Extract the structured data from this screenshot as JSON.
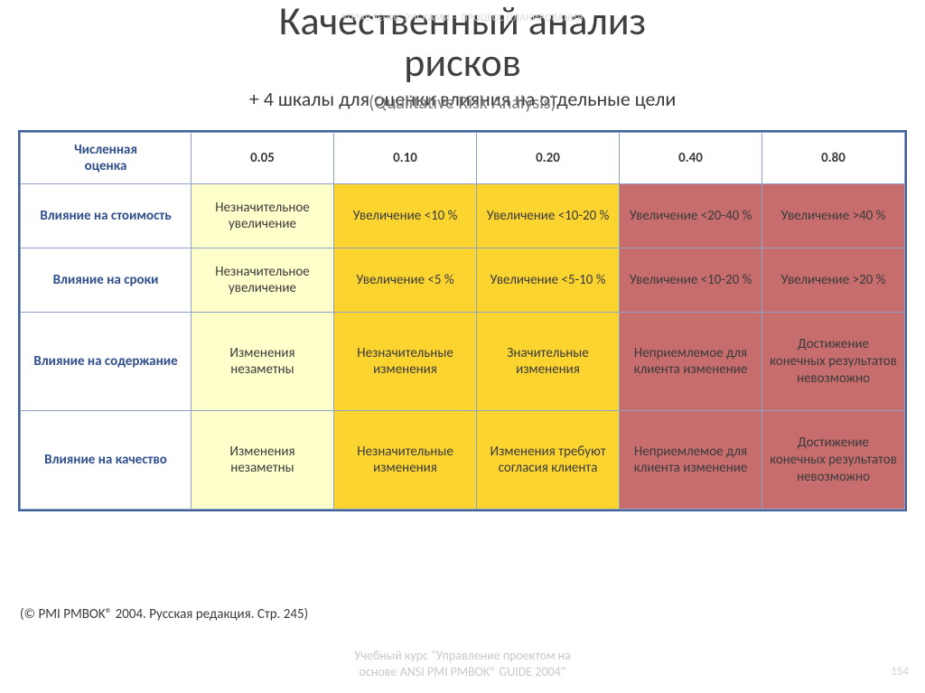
{
  "faintTop": "УПРАВЛЕНИЕ РИСКАМИ – ПРОЦЕСС ПЛАНИРОВАНИЯ",
  "titleLine1": "Качественный анализ",
  "titleLine2": "рисков",
  "subRu": "+ 4 шкалы для оценки влияния на отдельные цели",
  "subEn": "(Qualitative Risk Analysis)",
  "footnote": "(© PMI PMBOK® 2004. Русская редакция. Стр. 245)",
  "courseLine1": "Учебный курс \"Управление проектом на",
  "courseLine2": "основе ANSI PMI PMBOK® GUIDE 2004\"",
  "pageNum": "154",
  "colors": {
    "low": "#ffffcc",
    "mid": "#fcd430",
    "high": "#c76d6d",
    "border": "#3f5f9a",
    "headerText": "#2f4e8d"
  },
  "table": {
    "cornerLine1": "Численная",
    "cornerLine2": "оценка",
    "columns": [
      "0.05",
      "0.10",
      "0.20",
      "0.40",
      "0.80"
    ],
    "colColors": [
      "low",
      "mid",
      "mid",
      "high",
      "high"
    ],
    "rows": [
      {
        "head": "Влияние на стоимость",
        "tall": false,
        "cells": [
          "Незначительное увеличение",
          "Увеличение <10 %",
          "Увеличение <10-20 %",
          "Увеличение <20-40 %",
          "Увеличение >40 %"
        ]
      },
      {
        "head": "Влияние на сроки",
        "tall": false,
        "cells": [
          "Незначительное увеличение",
          "Увеличение <5 %",
          "Увеличение <5-10 %",
          "Увеличение <10-20 %",
          "Увеличение >20 %"
        ]
      },
      {
        "head": "Влияние на содержание",
        "tall": true,
        "cells": [
          "Изменения незаметны",
          "Незначительные изменения",
          "Значительные изменения",
          "Неприемлемое для клиента изменение",
          "Достижение конечных результатов невозможно"
        ]
      },
      {
        "head": "Влияние на качество",
        "tall": true,
        "cells": [
          "Изменения незаметны",
          "Незначительные изменения",
          "Изменения требуют согласия клиента",
          "Неприемлемое для клиента изменение",
          "Достижение конечных результатов невозможно"
        ]
      }
    ]
  }
}
